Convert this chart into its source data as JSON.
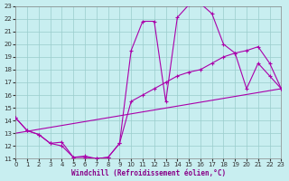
{
  "xlabel": "Windchill (Refroidissement éolien,°C)",
  "bg_color": "#c8eef0",
  "line_color": "#aa00aa",
  "grid_color": "#99cccc",
  "xlim": [
    0,
    23
  ],
  "ylim": [
    11,
    23
  ],
  "yticks": [
    11,
    12,
    13,
    14,
    15,
    16,
    17,
    18,
    19,
    20,
    21,
    22,
    23
  ],
  "xticks": [
    0,
    1,
    2,
    3,
    4,
    5,
    6,
    7,
    8,
    9,
    10,
    11,
    12,
    13,
    14,
    15,
    16,
    17,
    18,
    19,
    20,
    21,
    22,
    23
  ],
  "curve1_x": [
    0,
    1,
    2,
    3,
    4,
    5,
    6,
    7,
    8,
    9,
    10,
    11,
    12,
    13,
    14,
    15,
    16,
    17,
    18,
    19,
    20,
    21,
    22,
    23
  ],
  "curve1_y": [
    14.2,
    13.2,
    12.9,
    12.2,
    12.0,
    11.1,
    11.1,
    11.0,
    11.1,
    12.2,
    19.5,
    21.8,
    21.8,
    15.5,
    22.1,
    23.1,
    23.2,
    22.4,
    20.0,
    19.3,
    16.5,
    18.5,
    17.5,
    16.5
  ],
  "curve2_x": [
    0,
    1,
    2,
    3,
    4,
    5,
    6,
    7,
    8,
    9,
    10,
    11,
    12,
    13,
    14,
    15,
    16,
    17,
    18,
    19,
    20,
    21,
    22,
    23
  ],
  "curve2_y": [
    14.2,
    13.2,
    12.9,
    12.2,
    12.3,
    11.1,
    11.2,
    11.0,
    11.1,
    12.2,
    15.5,
    16.0,
    16.5,
    17.0,
    17.5,
    17.8,
    18.0,
    18.5,
    19.0,
    19.3,
    19.5,
    19.8,
    18.5,
    16.5
  ],
  "line3_x": [
    0,
    23
  ],
  "line3_y": [
    13.0,
    16.5
  ],
  "linewidth": 0.8,
  "markersize": 3,
  "xlabel_color": "#880088",
  "xlabel_fontsize": 5.5,
  "tick_fontsize": 5
}
